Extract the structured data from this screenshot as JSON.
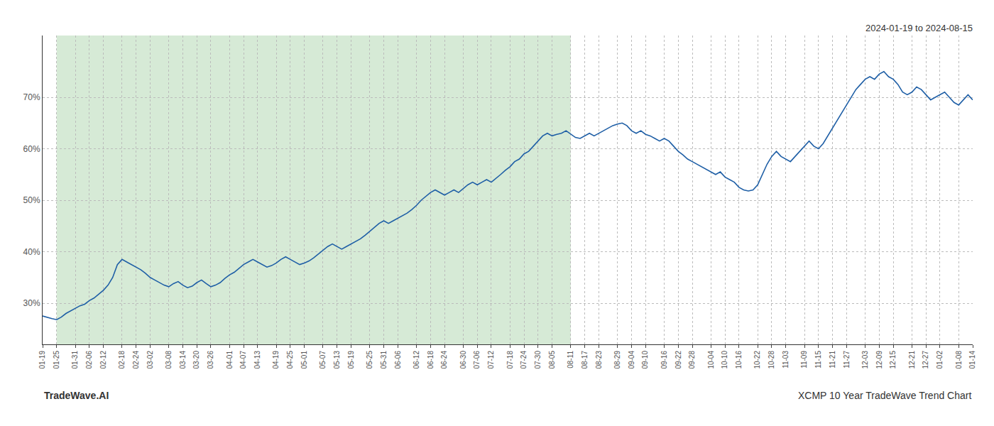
{
  "chart_data": {
    "type": "line",
    "title": "2024-01-19 to 2024-08-15",
    "annotations": [
      "TradeWave.AI",
      "XCMP 10 Year TradeWave Trend Chart"
    ],
    "color": "#1f5fa6",
    "grid": true,
    "ylim": [
      22,
      82
    ],
    "yticks": [
      {
        "value": 30,
        "label": "30%"
      },
      {
        "value": 40,
        "label": "40%"
      },
      {
        "value": 50,
        "label": "50%"
      },
      {
        "value": 60,
        "label": "60%"
      },
      {
        "value": 70,
        "label": "70%"
      }
    ],
    "shaded_region": {
      "start": "01-25",
      "end": "08-11",
      "color": "#d6ead6"
    },
    "categories": [
      "01-19",
      null,
      null,
      "01-25",
      null,
      null,
      null,
      "01-31",
      null,
      null,
      "02-06",
      null,
      null,
      "02-12",
      null,
      null,
      null,
      "02-18",
      null,
      null,
      "02-24",
      null,
      null,
      "03-02",
      null,
      null,
      null,
      "03-08",
      null,
      null,
      "03-14",
      null,
      null,
      "03-20",
      null,
      null,
      "03-26",
      null,
      null,
      null,
      "04-01",
      null,
      null,
      "04-07",
      null,
      null,
      "04-13",
      null,
      null,
      null,
      "04-19",
      null,
      null,
      "04-25",
      null,
      null,
      "05-01",
      null,
      null,
      null,
      "05-07",
      null,
      null,
      "05-13",
      null,
      null,
      "05-19",
      null,
      null,
      null,
      "05-25",
      null,
      null,
      "05-31",
      null,
      null,
      "06-06",
      null,
      null,
      null,
      "06-12",
      null,
      null,
      "06-18",
      null,
      null,
      "06-24",
      null,
      null,
      null,
      "06-30",
      null,
      null,
      "07-06",
      null,
      null,
      "07-12",
      null,
      null,
      null,
      "07-18",
      null,
      null,
      "07-24",
      null,
      null,
      "07-30",
      null,
      null,
      "08-05",
      null,
      null,
      null,
      "08-11",
      null,
      null,
      "08-17",
      null,
      null,
      "08-23",
      null,
      null,
      null,
      "08-29",
      null,
      null,
      "09-04",
      null,
      null,
      "09-10",
      null,
      null,
      null,
      "09-16",
      null,
      null,
      "09-22",
      null,
      null,
      "09-28",
      null,
      null,
      null,
      "10-04",
      null,
      null,
      "10-10",
      null,
      null,
      "10-16",
      null,
      null,
      null,
      "10-22",
      null,
      null,
      "10-28",
      null,
      null,
      "11-03",
      null,
      null,
      null,
      "11-09",
      null,
      null,
      "11-15",
      null,
      null,
      "11-21",
      null,
      null,
      "11-27",
      null,
      null,
      null,
      "12-03",
      null,
      null,
      "12-09",
      null,
      null,
      "12-15",
      null,
      null,
      null,
      "12-21",
      null,
      null,
      "12-27",
      null,
      null,
      "01-02",
      null,
      null,
      null,
      "01-08",
      null,
      null,
      "01-14"
    ],
    "values": [
      27.5,
      27.2,
      27.0,
      26.8,
      27.3,
      28.0,
      28.5,
      29.0,
      29.5,
      29.8,
      30.5,
      31.0,
      31.8,
      32.5,
      33.5,
      35.0,
      37.5,
      38.5,
      38.0,
      37.5,
      37.0,
      36.5,
      35.8,
      35.0,
      34.5,
      34.0,
      33.5,
      33.2,
      33.8,
      34.2,
      33.5,
      33.0,
      33.3,
      34.0,
      34.5,
      33.8,
      33.2,
      33.5,
      34.0,
      34.8,
      35.5,
      36.0,
      36.8,
      37.5,
      38.0,
      38.5,
      38.0,
      37.5,
      37.0,
      37.3,
      37.8,
      38.5,
      39.0,
      38.5,
      38.0,
      37.5,
      37.8,
      38.2,
      38.8,
      39.5,
      40.2,
      41.0,
      41.5,
      41.0,
      40.5,
      41.0,
      41.5,
      42.0,
      42.5,
      43.2,
      44.0,
      44.8,
      45.5,
      46.0,
      45.5,
      46.0,
      46.5,
      47.0,
      47.5,
      48.2,
      49.0,
      50.0,
      50.8,
      51.5,
      52.0,
      51.5,
      51.0,
      51.5,
      52.0,
      51.5,
      52.2,
      53.0,
      53.5,
      53.0,
      53.5,
      54.0,
      53.5,
      54.2,
      55.0,
      55.8,
      56.5,
      57.5,
      58.0,
      59.0,
      59.5,
      60.5,
      61.5,
      62.5,
      63.0,
      62.5,
      62.8,
      63.0,
      63.5,
      62.8,
      62.2,
      62.0,
      62.5,
      63.0,
      62.5,
      63.0,
      63.5,
      64.0,
      64.5,
      64.8,
      65.0,
      64.5,
      63.5,
      63.0,
      63.5,
      62.8,
      62.5,
      62.0,
      61.5,
      62.0,
      61.5,
      60.5,
      59.5,
      58.8,
      58.0,
      57.5,
      57.0,
      56.5,
      56.0,
      55.5,
      55.0,
      55.5,
      54.5,
      54.0,
      53.5,
      52.5,
      52.0,
      51.8,
      52.0,
      53.0,
      55.0,
      57.0,
      58.5,
      59.5,
      58.5,
      58.0,
      57.5,
      58.5,
      59.5,
      60.5,
      61.5,
      60.5,
      60.0,
      61.0,
      62.5,
      64.0,
      65.5,
      67.0,
      68.5,
      70.0,
      71.5,
      72.5,
      73.5,
      74.0,
      73.5,
      74.5,
      75.0,
      74.0,
      73.5,
      72.5,
      71.0,
      70.5,
      71.0,
      72.0,
      71.5,
      70.5,
      69.5,
      70.0,
      70.5,
      71.0,
      70.0,
      69.0,
      68.5,
      69.5,
      70.5,
      69.5
    ]
  }
}
